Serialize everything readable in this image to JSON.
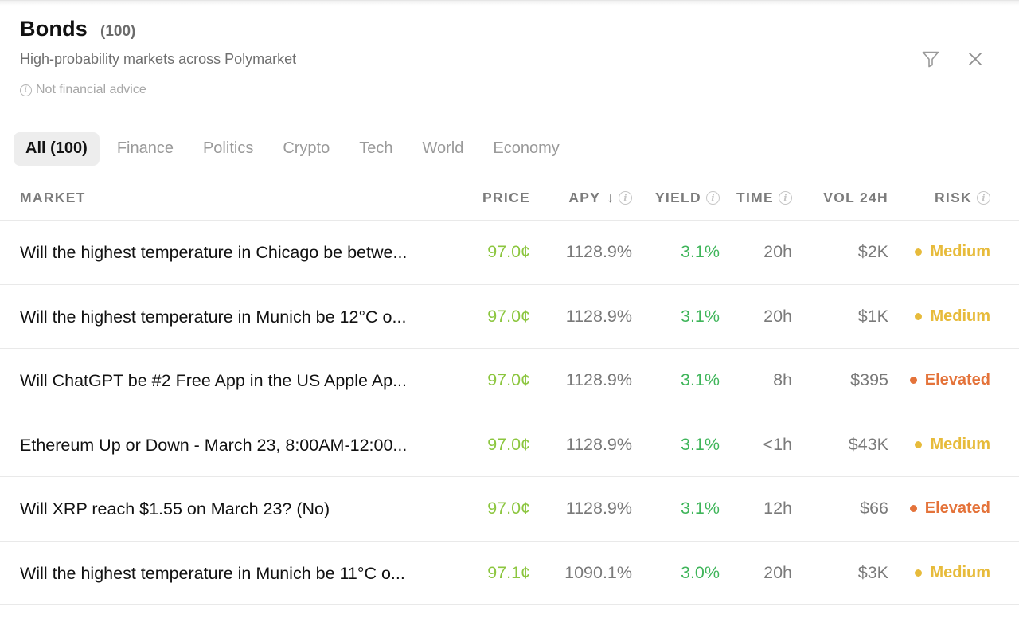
{
  "header": {
    "title": "Bonds",
    "count": "(100)",
    "subtitle": "High-probability markets across Polymarket",
    "disclaimer": "Not financial advice",
    "filter_icon": "filter-icon",
    "close_icon": "close-icon"
  },
  "tabs": [
    {
      "label": "All (100)",
      "active": true
    },
    {
      "label": "Finance"
    },
    {
      "label": "Politics"
    },
    {
      "label": "Crypto"
    },
    {
      "label": "Tech"
    },
    {
      "label": "World"
    },
    {
      "label": "Economy"
    }
  ],
  "table": {
    "columns": {
      "market": "MARKET",
      "price": "PRICE",
      "apy": "APY",
      "apy_sort": "↓",
      "yield": "YIELD",
      "time": "TIME",
      "vol": "VOL 24H",
      "risk": "RISK"
    },
    "rows": [
      {
        "market": "Will the highest temperature in Chicago be betwe...",
        "price": "97.0¢",
        "apy": "1128.9%",
        "yield": "3.1%",
        "time": "20h",
        "vol": "$2K",
        "risk": "Medium"
      },
      {
        "market": "Will the highest temperature in Munich be 12°C o...",
        "price": "97.0¢",
        "apy": "1128.9%",
        "yield": "3.1%",
        "time": "20h",
        "vol": "$1K",
        "risk": "Medium"
      },
      {
        "market": "Will ChatGPT be #2 Free App in the US Apple Ap...",
        "price": "97.0¢",
        "apy": "1128.9%",
        "yield": "3.1%",
        "time": "8h",
        "vol": "$395",
        "risk": "Elevated"
      },
      {
        "market": "Ethereum Up or Down - March 23, 8:00AM-12:00...",
        "price": "97.0¢",
        "apy": "1128.9%",
        "yield": "3.1%",
        "time": "<1h",
        "vol": "$43K",
        "risk": "Medium"
      },
      {
        "market": "Will XRP reach $1.55 on March 23? (No)",
        "price": "97.0¢",
        "apy": "1128.9%",
        "yield": "3.1%",
        "time": "12h",
        "vol": "$66",
        "risk": "Elevated"
      },
      {
        "market": "Will the highest temperature in Munich be 11°C o...",
        "price": "97.1¢",
        "apy": "1090.1%",
        "yield": "3.0%",
        "time": "20h",
        "vol": "$3K",
        "risk": "Medium"
      }
    ]
  },
  "colors": {
    "price": "#8cc63f",
    "yield": "#3fb55a",
    "risk_medium": "#e7bb3b",
    "risk_elevated": "#e4733a"
  }
}
